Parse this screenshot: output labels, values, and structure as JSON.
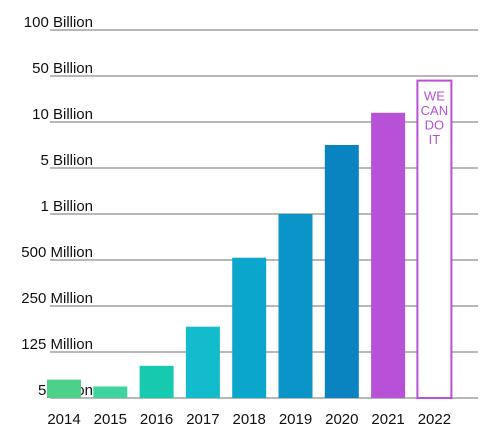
{
  "chart_data": {
    "type": "bar",
    "title": "",
    "xlabel": "",
    "ylabel": "",
    "y_scale": "categorical-step",
    "y_ticks": [
      "5 Million",
      "125 Million",
      "250 Million",
      "500 Million",
      "1 Billion",
      "5 Billion",
      "10 Billion",
      "50 Billion",
      "100 Billion"
    ],
    "categories": [
      "2014",
      "2015",
      "2016",
      "2017",
      "2018",
      "2019",
      "2020",
      "2021",
      "2022"
    ],
    "values": [
      0.4,
      0.25,
      0.7,
      1.55,
      3.05,
      4.0,
      5.5,
      6.2,
      null
    ],
    "value_unit": "tick-index (0 = 5 Million, 8 = 100 Billion)",
    "bar_colors": [
      "#4cd08a",
      "#3fd3a0",
      "#17c9ae",
      "#12bccc",
      "#0aa6cc",
      "#0a94c8",
      "#0a84c0",
      "#b752d8",
      "#ffffff"
    ],
    "goal_bar": {
      "category": "2022",
      "value": 6.9,
      "outline_color": "#b752d8",
      "text": [
        "WE",
        "CAN",
        "DO",
        "IT"
      ]
    },
    "gridline_color": "#b8b8b8",
    "grid": true,
    "legend": "none"
  }
}
